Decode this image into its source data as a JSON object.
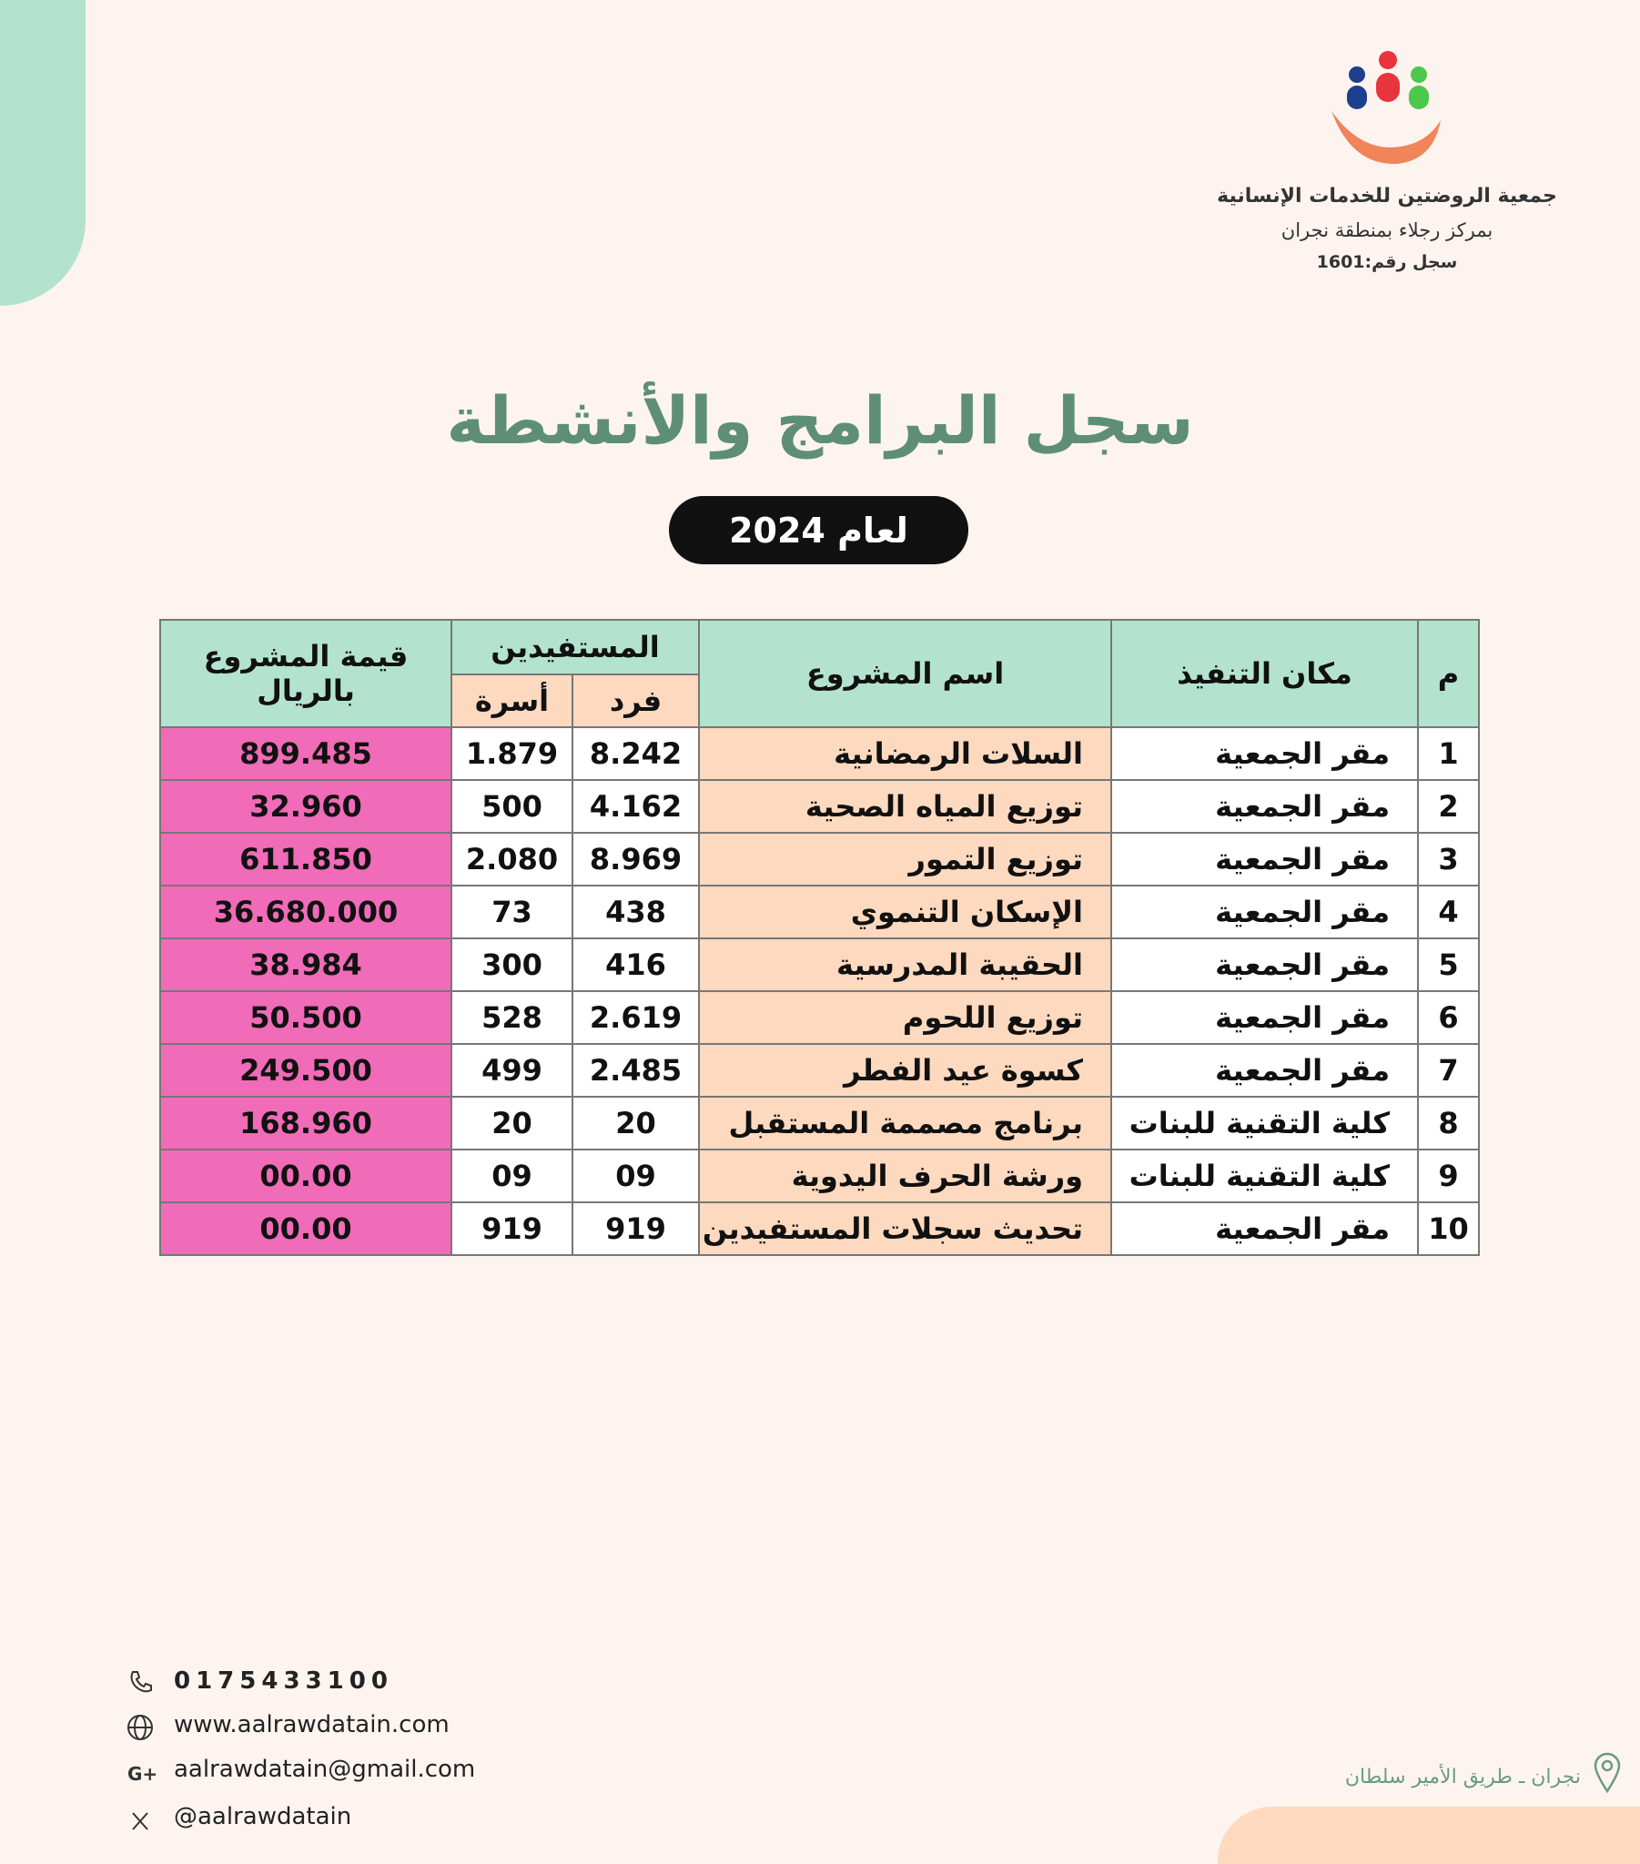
{
  "header": {
    "org_name": "جمعية الروضتين للخدمات الإنسانية",
    "branch": "بمركز رجلاء بمنطقة نجران",
    "registration": "سجل رقم:1601"
  },
  "title": "سجل البرامج والأنشطة",
  "subtitle": "لعام 2024",
  "table": {
    "headers": {
      "index": "م",
      "place": "مكان التنفيذ",
      "project": "اسم المشروع",
      "beneficiaries": "المستفيدين",
      "individual": "فرد",
      "family": "أسرة",
      "value": [
        "قيمة المشروع",
        "بالريال"
      ]
    },
    "rows": [
      [
        "1",
        "مقر الجمعية",
        "السلات الرمضانية",
        "8.242",
        "1.879",
        "899.485"
      ],
      [
        "2",
        "مقر الجمعية",
        "توزيع المياه الصحية",
        "4.162",
        "500",
        "32.960"
      ],
      [
        "3",
        "مقر الجمعية",
        "توزيع التمور",
        "8.969",
        "2.080",
        "611.850"
      ],
      [
        "4",
        "مقر الجمعية",
        "الإسكان التنموي",
        "438",
        "73",
        "36.680.000"
      ],
      [
        "5",
        "مقر الجمعية",
        "الحقيبة المدرسية",
        "416",
        "300",
        "38.984"
      ],
      [
        "6",
        "مقر الجمعية",
        "توزيع اللحوم",
        "2.619",
        "528",
        "50.500"
      ],
      [
        "7",
        "مقر الجمعية",
        "كسوة عيد الفطر",
        "2.485",
        "499",
        "249.500"
      ],
      [
        "8",
        "كلية التقنية للبنات",
        "برنامج مصممة المستقبل",
        "20",
        "20",
        "168.960"
      ],
      [
        "9",
        "كلية التقنية للبنات",
        "ورشة الحرف اليدوية",
        "09",
        "09",
        "00.00"
      ],
      [
        "10",
        "مقر الجمعية",
        "تحديث سجلات المستفيدين",
        "919",
        "919",
        "00.00"
      ]
    ]
  },
  "footer": {
    "phone": "0175433100",
    "website": "www.aalrawdatain.com",
    "email": "aalrawdatain@gmail.com",
    "x_handle": "@aalrawdatain",
    "address": "نجران ـ طريق الأمير سلطان"
  }
}
